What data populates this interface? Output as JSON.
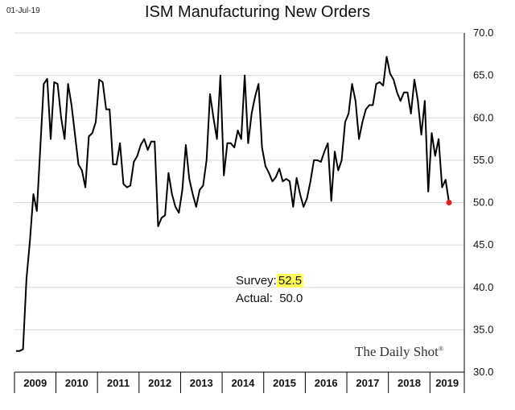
{
  "header": {
    "date_stamp": "01-Jul-19",
    "title": "ISM Manufacturing New Orders"
  },
  "annotation": {
    "survey_label": "Survey:",
    "survey_value": "52.5",
    "actual_label": "Actual:",
    "actual_value": "50.0"
  },
  "brand": {
    "name": "The Daily Shot",
    "mark": "®"
  },
  "colors": {
    "line": "#000000",
    "last_point": "#e02020",
    "highlight": "#ffff55",
    "grid": "#d9d9d9"
  },
  "chart_data": {
    "type": "line",
    "title": "ISM Manufacturing New Orders",
    "x_start": "2009-01",
    "x_end": "2019-06",
    "x_frequency": "monthly",
    "year_labels": [
      "2009",
      "2010",
      "2011",
      "2012",
      "2013",
      "2014",
      "2015",
      "2016",
      "2017",
      "2018",
      "2019"
    ],
    "ylim": [
      30,
      70
    ],
    "yticks": [
      "30.0",
      "35.0",
      "40.0",
      "45.0",
      "50.0",
      "55.0",
      "60.0",
      "65.0",
      "70.0"
    ],
    "grid": "horizontal",
    "series": [
      {
        "values": [
          32.5,
          32.5,
          32.7,
          41.0,
          45.5,
          51.0,
          49.0,
          56.5,
          64.0,
          64.6,
          57.5,
          64.2,
          64.0,
          60.0,
          57.5,
          64.0,
          61.5,
          58.0,
          54.5,
          53.8,
          51.8,
          57.8,
          58.2,
          59.5,
          64.5,
          64.2,
          61.0,
          61.0,
          54.5,
          54.5,
          57.0,
          52.2,
          51.8,
          52.0,
          54.8,
          55.5,
          56.8,
          57.5,
          56.2,
          57.2,
          57.2,
          47.2,
          48.2,
          48.5,
          53.5,
          51.0,
          49.5,
          48.8,
          51.5,
          56.8,
          52.8,
          51.0,
          49.5,
          51.5,
          52.0,
          55.0,
          62.8,
          60.0,
          57.5,
          65.0,
          53.2,
          57.0,
          57.0,
          56.5,
          58.5,
          57.5,
          65.0,
          57.0,
          60.5,
          62.5,
          64.0,
          56.5,
          54.3,
          53.5,
          52.5,
          53.0,
          54.0,
          52.5,
          52.8,
          52.5,
          49.5,
          52.9,
          51.0,
          49.5,
          50.5,
          52.5,
          55.0,
          55.0,
          54.8,
          56.0,
          57.0,
          50.2,
          56.0,
          53.8,
          55.0,
          59.5,
          60.5,
          64.0,
          62.0,
          57.5,
          59.5,
          61.0,
          61.5,
          61.5,
          64.0,
          64.2,
          63.8,
          67.2,
          65.2,
          64.5,
          63.0,
          62.0,
          63.0,
          63.0,
          60.5,
          64.5,
          62.0,
          58.0,
          62.0,
          51.3,
          58.2,
          55.5,
          57.5,
          51.8,
          52.7,
          50.0
        ]
      }
    ],
    "annotations": [
      "Survey: 52.5",
      "Actual: 50.0"
    ],
    "last_point_marker": "red dot"
  }
}
